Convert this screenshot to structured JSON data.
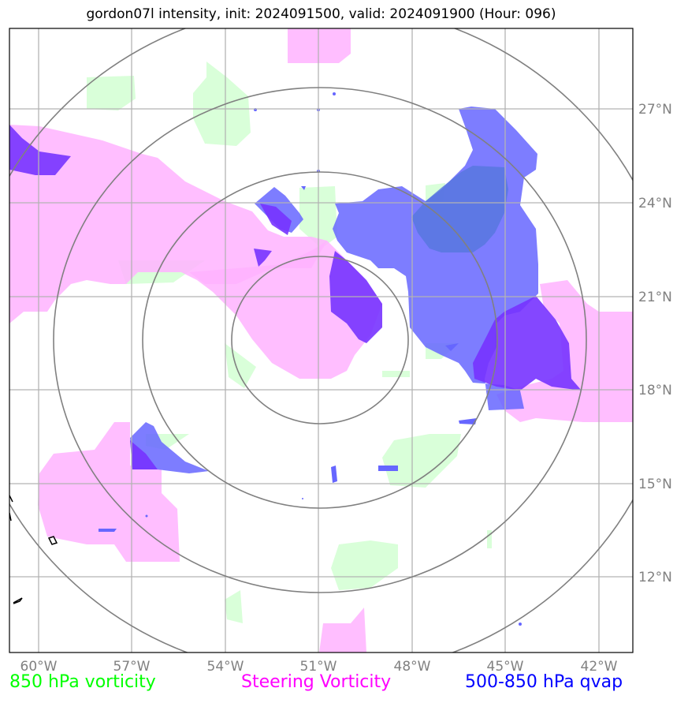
{
  "title": "gordon07l intensity, init: 2024091500, valid: 2024091900 (Hour: 096)",
  "axes": {
    "lon_labels": [
      "60°W",
      "57°W",
      "54°W",
      "51°W",
      "48°W",
      "45°W",
      "42°W"
    ],
    "lat_labels": [
      "27°N",
      "24°N",
      "21°N",
      "18°N",
      "15°N",
      "12°N"
    ]
  },
  "legend": [
    {
      "label": "850 hPa vorticity",
      "color": "#00ff00"
    },
    {
      "label": "Steering Vorticity",
      "color": "#ff00ff"
    },
    {
      "label": "500-850 hPa qvap",
      "color": "#0000ff"
    }
  ],
  "colors": {
    "vort850_fill": "#ccffcc",
    "steering_fill": "#ffb3ff",
    "qvap_fill": "#6666ff",
    "qvap_strong": "#7733ff",
    "gridline": "#b3b3b3",
    "range_ring": "#808080"
  }
}
